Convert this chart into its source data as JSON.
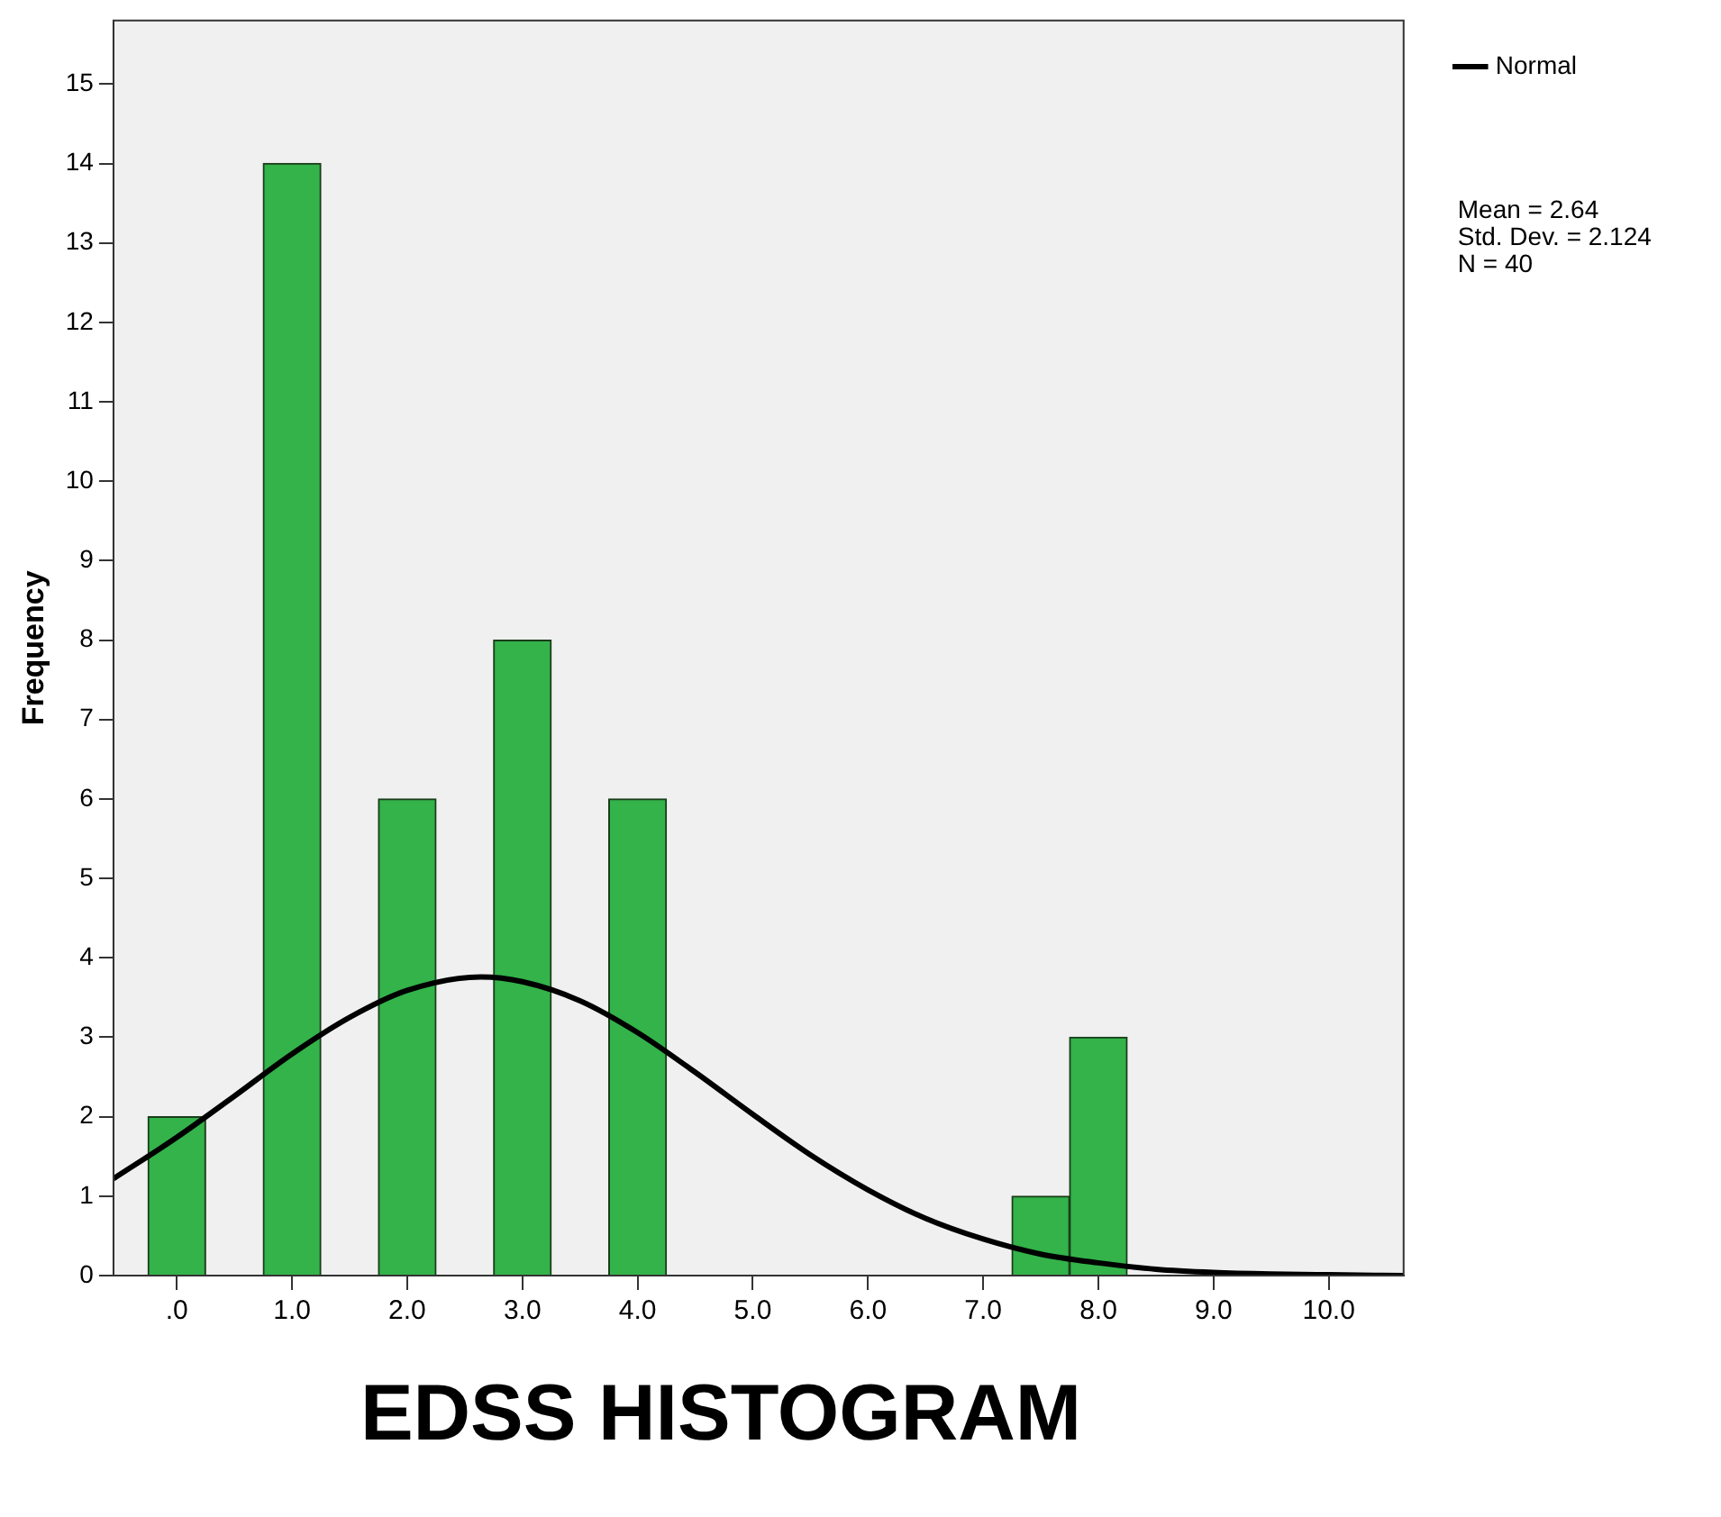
{
  "chart_data": {
    "type": "histogram",
    "title": "EDSS HISTOGRAM",
    "ylabel": "Frequency",
    "bins": [
      -0.25,
      0.25,
      0.75,
      1.25,
      1.75,
      2.25,
      2.75,
      3.25,
      3.75,
      4.25,
      4.75,
      5.25,
      5.75,
      6.25,
      6.75,
      7.25,
      7.75,
      8.25
    ],
    "values": [
      2,
      0,
      14,
      0,
      6,
      0,
      8,
      0,
      6,
      0,
      0,
      0,
      0,
      0,
      0,
      1,
      3
    ],
    "color": "#33b34a",
    "series": [
      {
        "name": "Normal",
        "type": "line",
        "color": "#000000",
        "marker": "none",
        "x": [
          -0.55,
          0,
          0.5,
          1,
          1.5,
          2,
          2.64,
          3,
          3.5,
          4,
          4.5,
          5,
          5.5,
          6,
          6.5,
          7,
          7.5,
          8,
          8.5,
          9,
          9.5,
          10,
          10.65
        ],
        "values": [
          1.22,
          1.74,
          2.26,
          2.79,
          3.25,
          3.59,
          3.76,
          3.7,
          3.46,
          3.06,
          2.56,
          2.03,
          1.52,
          1.08,
          0.72,
          0.46,
          0.27,
          0.16,
          0.08,
          0.04,
          0.02,
          0.01,
          0
        ]
      }
    ],
    "xlim": [
      -0.55,
      10.65
    ],
    "ylim": [
      0,
      15.8
    ],
    "xticks": [
      {
        "value": 0,
        "label": ".0"
      },
      {
        "value": 1,
        "label": "1.0"
      },
      {
        "value": 2,
        "label": "2.0"
      },
      {
        "value": 3,
        "label": "3.0"
      },
      {
        "value": 4,
        "label": "4.0"
      },
      {
        "value": 5,
        "label": "5.0"
      },
      {
        "value": 6,
        "label": "6.0"
      },
      {
        "value": 7,
        "label": "7.0"
      },
      {
        "value": 8,
        "label": "8.0"
      },
      {
        "value": 9,
        "label": "9.0"
      },
      {
        "value": 10,
        "label": "10.0"
      }
    ],
    "yticks": [
      0,
      1,
      2,
      3,
      4,
      5,
      6,
      7,
      8,
      9,
      10,
      11,
      12,
      13,
      14,
      15
    ],
    "legend": "top right",
    "annotations": [
      "Mean = 2.64",
      "Std. Dev. = 2.124",
      "N = 40"
    ]
  }
}
